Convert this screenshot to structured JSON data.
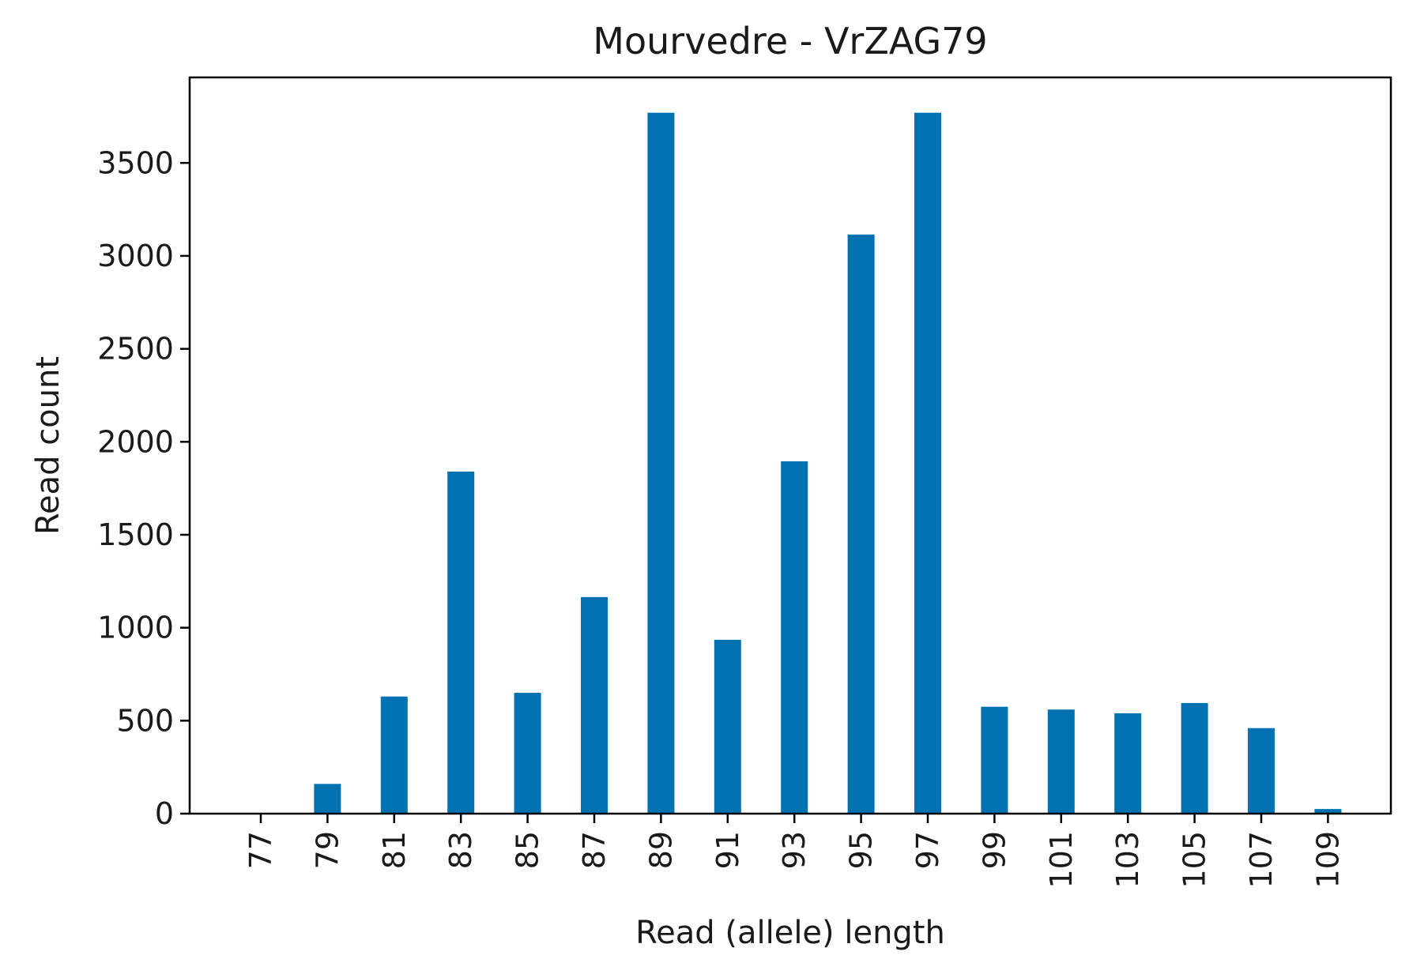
{
  "chart_data": {
    "type": "bar",
    "title": "Mourvedre - VrZAG79",
    "xlabel": "Read (allele) length",
    "ylabel": "Read count",
    "categories": [
      "77",
      "79",
      "81",
      "83",
      "85",
      "87",
      "89",
      "91",
      "93",
      "95",
      "97",
      "99",
      "101",
      "103",
      "105",
      "107",
      "109"
    ],
    "values": [
      0,
      160,
      630,
      1840,
      650,
      1165,
      3770,
      935,
      1895,
      3115,
      3770,
      575,
      560,
      540,
      595,
      460,
      25
    ],
    "yticks": [
      0,
      500,
      1000,
      1500,
      2000,
      2500,
      3000,
      3500
    ],
    "ylim": [
      0,
      3960
    ],
    "grid": false,
    "bar_color": "#0072b2"
  }
}
